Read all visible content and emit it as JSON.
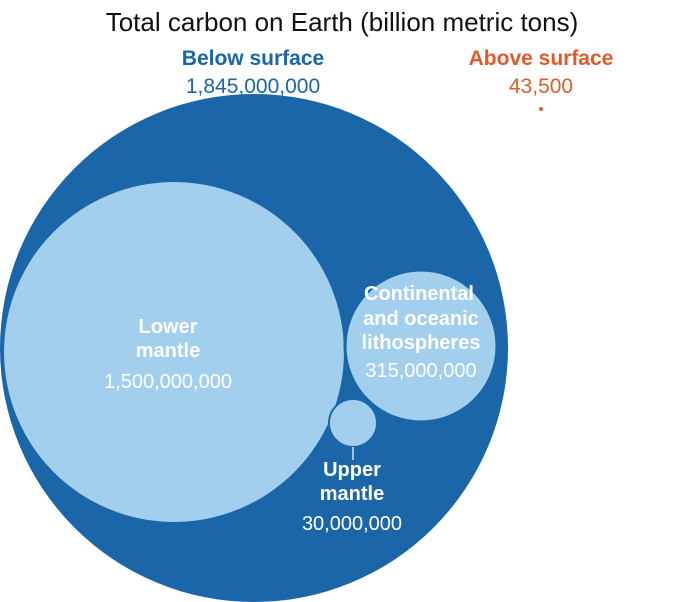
{
  "chart_data": {
    "type": "bubble",
    "title": "Total carbon on Earth (billion metric tons)",
    "groups": [
      {
        "label": "Below surface",
        "value_text": "1,845,000,000",
        "value": 1845000000,
        "color": "#1a66a8"
      },
      {
        "label": "Above surface",
        "value_text": "43,500",
        "value": 43500,
        "color": "#e05a2b"
      }
    ],
    "bubbles": [
      {
        "label_lines": [
          "Lower",
          "mantle"
        ],
        "value_text": "1,500,000,000",
        "value": 1500000000,
        "parent": "Below surface",
        "color": "#a3cfee"
      },
      {
        "label_lines": [
          "Continental",
          "and oceanic",
          "lithospheres"
        ],
        "value_text": "315,000,000",
        "value": 315000000,
        "parent": "Below surface",
        "color": "#a3cfee"
      },
      {
        "label_lines": [
          "Upper",
          "mantle"
        ],
        "value_text": "30,000,000",
        "value": 30000000,
        "parent": "Below surface",
        "color": "#a3cfee"
      }
    ]
  }
}
